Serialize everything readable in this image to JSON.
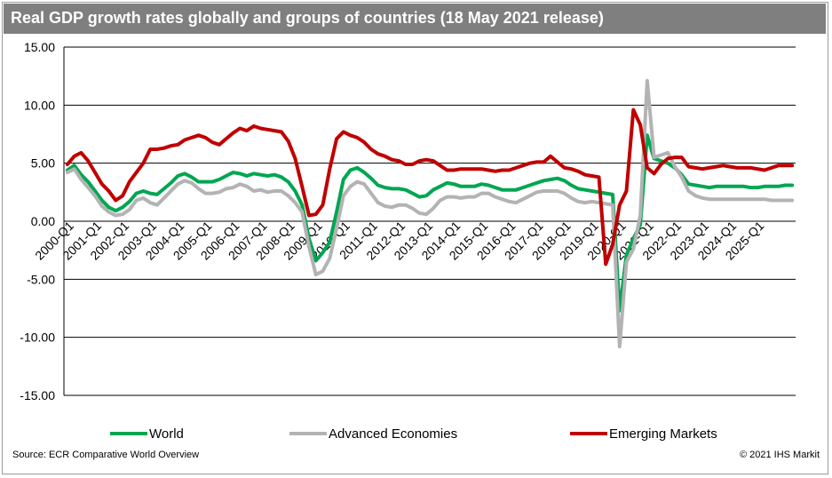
{
  "title": "Real GDP growth rates  globally and groups of countries (18 May 2021 release)",
  "source": "Source: ECR Comparative World Overview",
  "copyright": "© 2021 IHS Markit",
  "colors": {
    "world": "#00a651",
    "advanced": "#b3b3b3",
    "emerging": "#c00000",
    "title_bg": "#7f7f7f",
    "grid": "#000000"
  },
  "chart_data": {
    "type": "line",
    "title": "Real GDP growth rates  globally and groups of countries (18 May 2021 release)",
    "xlabel": "",
    "ylabel": "",
    "ylim": [
      -15,
      15
    ],
    "yticks": [
      "15.00",
      "10.00",
      "5.00",
      "0.00",
      "-5.00",
      "-10.00",
      "-15.00"
    ],
    "ytick_values": [
      15,
      10,
      5,
      0,
      -5,
      -10,
      -15
    ],
    "grid": "horizontal",
    "legend_position": "bottom",
    "x_tick_labels": [
      "2000-Q1",
      "2001-Q1",
      "2002-Q1",
      "2003-Q1",
      "2004-Q1",
      "2005-Q1",
      "2006-Q1",
      "2007-Q1",
      "2008-Q1",
      "2009-Q1",
      "2010-Q1",
      "2011-Q1",
      "2012-Q1",
      "2013-Q1",
      "2014-Q1",
      "2015-Q1",
      "2016-Q1",
      "2017-Q1",
      "2018-Q1",
      "2019-Q1",
      "2020-Q1",
      "2021-Q1",
      "2022-Q1",
      "2023-Q1",
      "2024-Q1",
      "2025-Q1"
    ],
    "x_start": "2000-Q1",
    "x_end": "2025-Q4",
    "series": [
      {
        "name": "World",
        "color": "#00a651",
        "values": [
          4.4,
          4.8,
          4.0,
          3.4,
          2.6,
          1.8,
          1.2,
          0.9,
          1.2,
          1.7,
          2.4,
          2.6,
          2.4,
          2.3,
          2.8,
          3.3,
          3.9,
          4.1,
          3.8,
          3.4,
          3.4,
          3.4,
          3.6,
          3.9,
          4.2,
          4.1,
          3.9,
          4.1,
          4.0,
          3.9,
          4.0,
          3.8,
          3.4,
          2.6,
          1.4,
          -1.5,
          -3.4,
          -2.7,
          -1.8,
          0.8,
          3.6,
          4.4,
          4.6,
          4.2,
          3.7,
          3.1,
          2.9,
          2.8,
          2.8,
          2.7,
          2.4,
          2.1,
          2.2,
          2.7,
          3.0,
          3.3,
          3.2,
          3.0,
          3.0,
          3.0,
          3.2,
          3.1,
          2.9,
          2.7,
          2.7,
          2.7,
          2.9,
          3.1,
          3.3,
          3.5,
          3.6,
          3.7,
          3.5,
          3.1,
          2.8,
          2.7,
          2.6,
          2.5,
          2.4,
          2.3,
          -7.7,
          -2.9,
          -1.5,
          -0.3,
          7.4,
          5.4,
          5.2,
          5.0,
          4.6,
          4.0,
          3.2,
          3.1,
          3.0,
          2.9,
          3.0,
          3.0,
          3.0,
          3.0,
          3.0,
          2.9,
          2.9,
          3.0,
          3.0,
          3.0,
          3.1,
          3.1
        ]
      },
      {
        "name": "Advanced Economies",
        "color": "#b3b3b3",
        "values": [
          4.2,
          4.5,
          3.6,
          2.9,
          2.2,
          1.3,
          0.8,
          0.5,
          0.6,
          1.0,
          1.8,
          2.0,
          1.6,
          1.4,
          2.0,
          2.6,
          3.2,
          3.5,
          3.3,
          2.8,
          2.4,
          2.4,
          2.5,
          2.8,
          2.9,
          3.2,
          3.0,
          2.6,
          2.7,
          2.5,
          2.6,
          2.6,
          2.2,
          1.6,
          0.8,
          -2.2,
          -4.6,
          -4.3,
          -3.2,
          -0.6,
          2.2,
          3.0,
          3.4,
          3.2,
          2.4,
          1.6,
          1.3,
          1.2,
          1.4,
          1.4,
          1.1,
          0.7,
          0.6,
          1.1,
          1.8,
          2.1,
          2.1,
          2.0,
          2.1,
          2.1,
          2.4,
          2.4,
          2.1,
          1.9,
          1.7,
          1.6,
          1.9,
          2.2,
          2.5,
          2.6,
          2.6,
          2.6,
          2.4,
          2.0,
          1.7,
          1.6,
          1.7,
          1.6,
          1.5,
          1.4,
          -10.8,
          -3.5,
          -2.4,
          0.5,
          12.1,
          5.5,
          5.7,
          5.9,
          4.7,
          3.8,
          2.6,
          2.2,
          2.0,
          1.9,
          1.9,
          1.9,
          1.9,
          1.9,
          1.9,
          1.9,
          1.9,
          1.9,
          1.8,
          1.8,
          1.8,
          1.8
        ]
      },
      {
        "name": "Emerging Markets",
        "color": "#c00000",
        "values": [
          4.9,
          5.6,
          5.9,
          5.2,
          4.2,
          3.2,
          2.6,
          1.8,
          2.2,
          3.4,
          4.2,
          5.0,
          6.2,
          6.2,
          6.3,
          6.5,
          6.6,
          7.0,
          7.2,
          7.4,
          7.2,
          6.8,
          6.6,
          7.1,
          7.6,
          8.0,
          7.8,
          8.2,
          8.0,
          7.9,
          7.8,
          7.7,
          6.9,
          5.4,
          3.0,
          0.5,
          0.6,
          1.4,
          4.5,
          7.1,
          7.7,
          7.4,
          7.2,
          6.8,
          6.2,
          5.8,
          5.6,
          5.3,
          5.2,
          4.9,
          4.9,
          5.2,
          5.3,
          5.2,
          4.8,
          4.4,
          4.4,
          4.5,
          4.5,
          4.5,
          4.5,
          4.4,
          4.3,
          4.4,
          4.4,
          4.6,
          4.8,
          5.0,
          5.1,
          5.1,
          5.6,
          5.1,
          4.6,
          4.5,
          4.3,
          4.0,
          3.9,
          3.8,
          -3.7,
          -2.0,
          1.4,
          2.6,
          9.6,
          8.3,
          4.6,
          4.1,
          4.9,
          5.4,
          5.5,
          5.5,
          4.7,
          4.6,
          4.5,
          4.6,
          4.7,
          4.8,
          4.7,
          4.6,
          4.6,
          4.6,
          4.5,
          4.4,
          4.6,
          4.8,
          4.8,
          4.8
        ]
      }
    ]
  }
}
